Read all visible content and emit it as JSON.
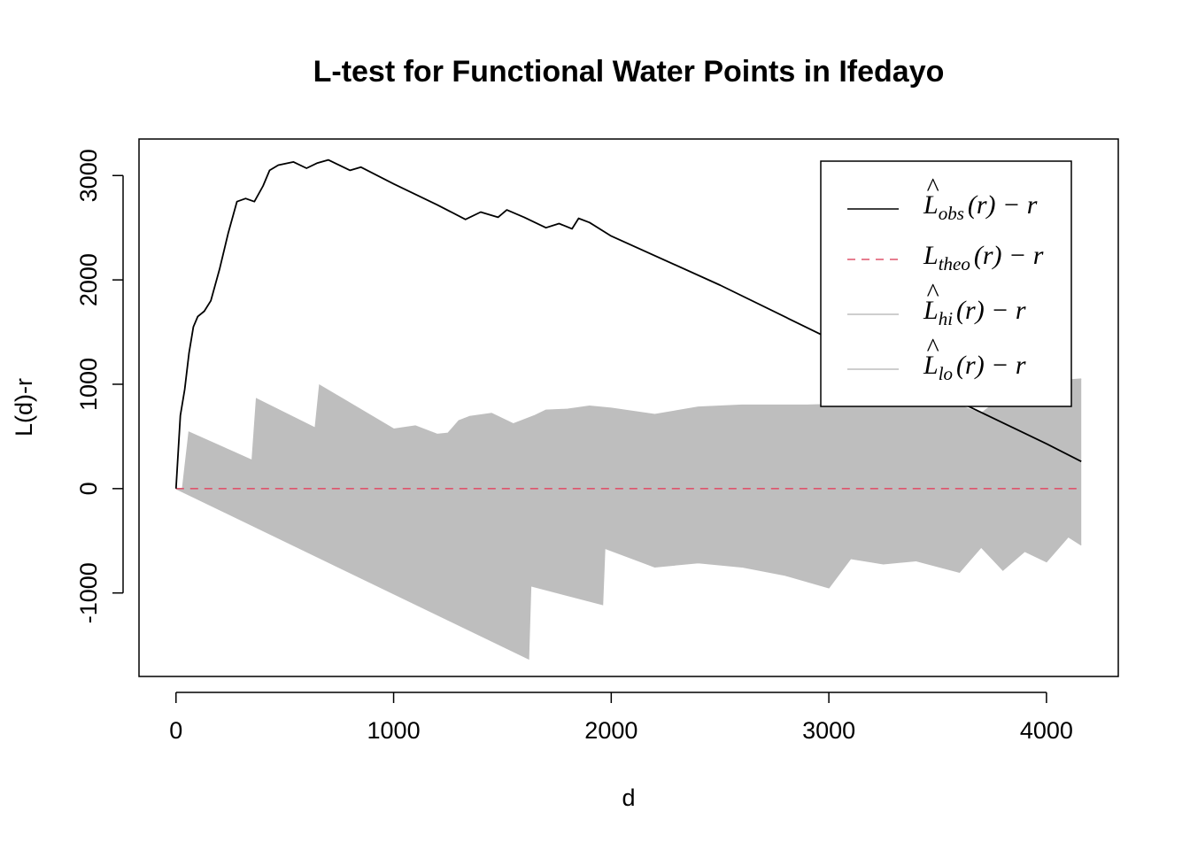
{
  "chart_data": {
    "type": "line",
    "title": "L-test for Functional Water Points in Ifedayo",
    "xlabel": "d",
    "ylabel": "L(d)-r",
    "xlim": [
      -170,
      4330
    ],
    "ylim": [
      -1800,
      3350
    ],
    "x_ticks": [
      0,
      1000,
      2000,
      3000,
      4000
    ],
    "y_ticks": [
      -1000,
      0,
      1000,
      2000,
      3000
    ],
    "x_tick_labels": [
      "0",
      "1000",
      "2000",
      "3000",
      "4000"
    ],
    "y_tick_labels": [
      "-1000",
      "0",
      "1000",
      "2000",
      "3000"
    ],
    "legend_position": "top-right",
    "colors": {
      "obs": "#000000",
      "theo": "#DF536B",
      "envelope": "#BEBEBE",
      "frame": "#000000"
    },
    "legend": [
      {
        "key": "obs",
        "base": "L",
        "hat": "^",
        "sub": "obs",
        "suffix": "(r) − r",
        "style": "solid",
        "color": "#000000"
      },
      {
        "key": "theo",
        "base": "L",
        "hat": "",
        "sub": "theo",
        "suffix": "(r) − r",
        "style": "dashed",
        "color": "#DF536B"
      },
      {
        "key": "hi",
        "base": "L",
        "hat": "^",
        "sub": "hi",
        "suffix": "(r) − r",
        "style": "solid",
        "color": "#BEBEBE"
      },
      {
        "key": "lo",
        "base": "L",
        "hat": "^",
        "sub": "lo",
        "suffix": "(r) − r",
        "style": "solid",
        "color": "#BEBEBE"
      }
    ],
    "series": [
      {
        "name": "obs",
        "x": [
          0,
          20,
          40,
          60,
          80,
          100,
          130,
          160,
          200,
          240,
          280,
          320,
          360,
          400,
          430,
          470,
          540,
          600,
          650,
          700,
          800,
          850,
          1000,
          1200,
          1330,
          1400,
          1480,
          1520,
          1600,
          1700,
          1760,
          1820,
          1850,
          1900,
          2000,
          2500,
          3000,
          3500,
          4000,
          4160
        ],
        "y": [
          0,
          700,
          950,
          1300,
          1550,
          1650,
          1700,
          1800,
          2100,
          2450,
          2750,
          2780,
          2750,
          2900,
          3050,
          3100,
          3130,
          3070,
          3120,
          3150,
          3050,
          3080,
          2920,
          2720,
          2580,
          2650,
          2600,
          2670,
          2600,
          2500,
          2540,
          2490,
          2590,
          2550,
          2420,
          1950,
          1440,
          930,
          430,
          260
        ]
      },
      {
        "name": "theo",
        "x": [
          0,
          4160
        ],
        "y": [
          0,
          0
        ]
      },
      {
        "name": "hi",
        "x": [
          0,
          30,
          60,
          350,
          370,
          640,
          660,
          1000,
          1100,
          1200,
          1250,
          1300,
          1350,
          1450,
          1550,
          1650,
          1700,
          1800,
          1900,
          2000,
          2200,
          2400,
          2600,
          2800,
          2900,
          3100,
          3300,
          3500,
          3700,
          3800,
          4000,
          4100,
          4160
        ],
        "y": [
          0,
          0,
          540,
          270,
          860,
          580,
          990,
          570,
          600,
          520,
          530,
          650,
          690,
          720,
          620,
          700,
          750,
          760,
          790,
          770,
          710,
          780,
          800,
          800,
          800,
          810,
          1010,
          870,
          720,
          880,
          990,
          1040,
          1050
        ]
      },
      {
        "name": "lo",
        "x": [
          0,
          1620,
          1630,
          1960,
          1970,
          2200,
          2400,
          2600,
          2800,
          3000,
          3100,
          3250,
          3400,
          3600,
          3700,
          3800,
          3900,
          4000,
          4100,
          4160
        ],
        "y": [
          0,
          -1630,
          -930,
          -1110,
          -570,
          -750,
          -710,
          -750,
          -830,
          -950,
          -670,
          -720,
          -690,
          -800,
          -560,
          -780,
          -600,
          -700,
          -460,
          -540
        ]
      }
    ]
  }
}
